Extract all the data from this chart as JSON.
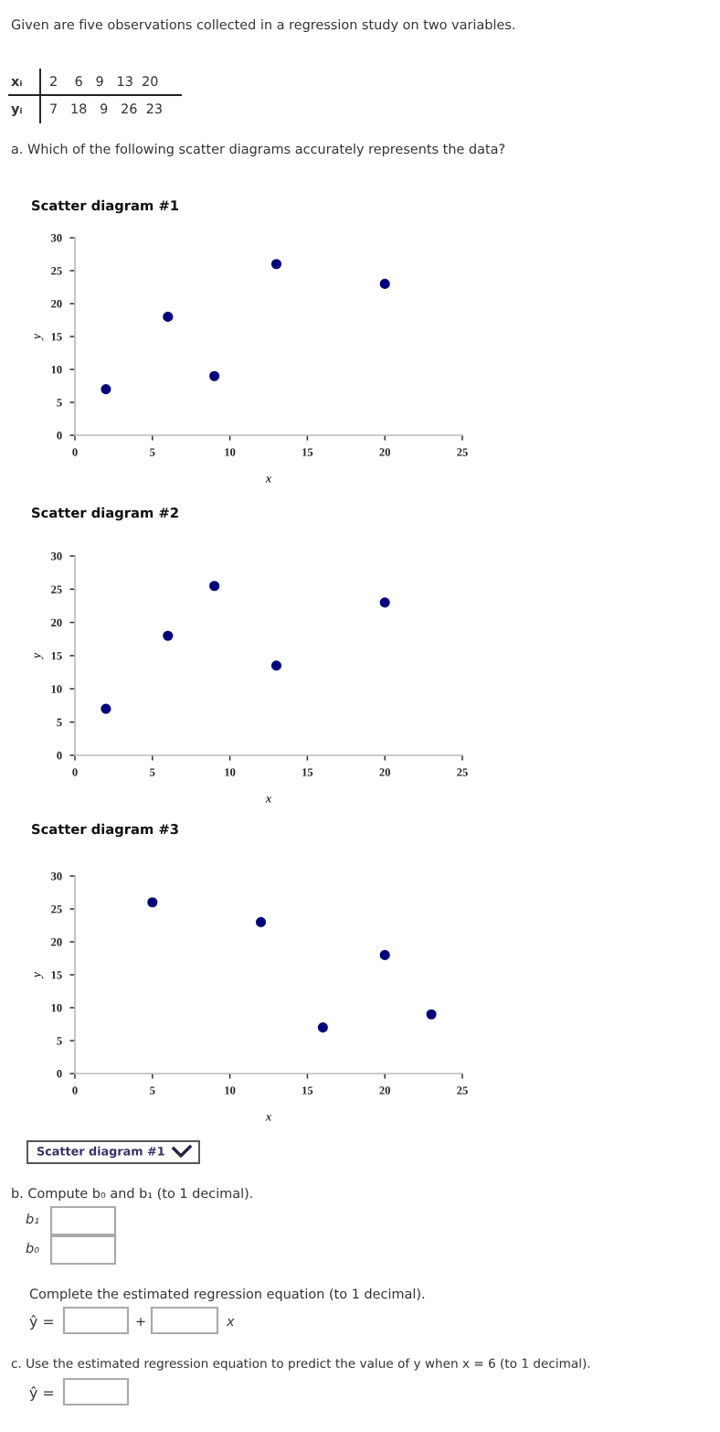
{
  "chart_data": [
    {
      "type": "other",
      "annotations": [
        "Given are five observations collected in a regression study on two variables.",
        "xᵢ",
        "2    6   9   13  20",
        "yᵢ",
        "7   18   9   26  23",
        "a. Which of the following scatter diagrams accurately represents the data?"
      ]
    },
    {
      "type": "scatter",
      "title": "Scatter diagram #1",
      "xlabel": "x",
      "ylabel": "y",
      "x": [
        2,
        6,
        9,
        13,
        20
      ],
      "series": [
        {
          "color": "#000080",
          "values": [
            7,
            18,
            9,
            26,
            23
          ]
        }
      ],
      "xlim": [
        0,
        25
      ],
      "ylim": [
        0,
        30
      ],
      "xticks": [
        0,
        5,
        10,
        15,
        20,
        25
      ],
      "yticks": [
        0,
        5,
        10,
        15,
        20,
        25,
        30
      ],
      "grid": false,
      "marker": "circle"
    },
    {
      "type": "scatter",
      "title": "Scatter diagram #2",
      "xlabel": "x",
      "ylabel": "y",
      "x": [
        2,
        6,
        9,
        13,
        20
      ],
      "series": [
        {
          "color": "#000080",
          "values": [
            7,
            18,
            25.5,
            13.5,
            23
          ]
        }
      ],
      "xlim": [
        0,
        25
      ],
      "ylim": [
        0,
        30
      ],
      "xticks": [
        0,
        5,
        10,
        15,
        20,
        25
      ],
      "yticks": [
        0,
        5,
        10,
        15,
        20,
        25,
        30
      ],
      "grid": false,
      "marker": "circle"
    },
    {
      "type": "scatter",
      "title": "Scatter diagram #3",
      "xlabel": "x",
      "ylabel": "y",
      "x": [
        5,
        12,
        16,
        20,
        23
      ],
      "series": [
        {
          "color": "#000080",
          "values": [
            26,
            23,
            7,
            18,
            9
          ]
        }
      ],
      "xlim": [
        0,
        25
      ],
      "ylim": [
        0,
        30
      ],
      "xticks": [
        0,
        5,
        10,
        15,
        20,
        25
      ],
      "yticks": [
        0,
        5,
        10,
        15,
        20,
        25,
        30
      ],
      "grid": false,
      "marker": "circle"
    },
    {
      "type": "other",
      "annotations": [
        "Scatter diagram #1",
        "b. Compute b₀ and b₁ (to 1 decimal).",
        "b₁",
        "b₀",
        "Complete the estimated regression equation (to 1 decimal).",
        "ŷ =",
        "+",
        "x",
        "c. Use the estimated regression equation to predict the value of y when x = 6 (to 1 decimal).",
        "ŷ ="
      ]
    }
  ]
}
